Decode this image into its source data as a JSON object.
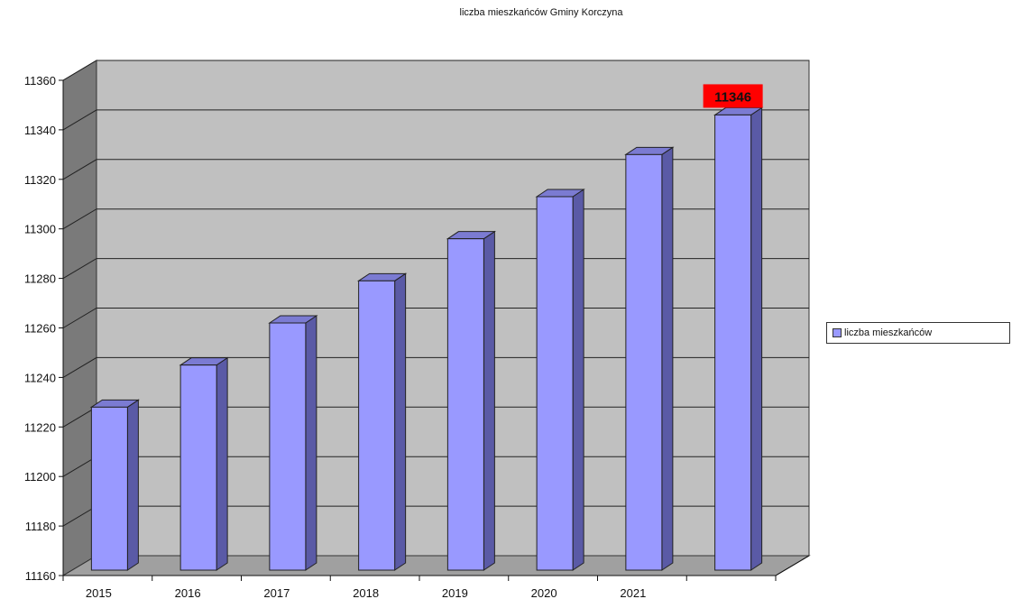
{
  "chart_data": {
    "type": "bar",
    "title": "liczba mieszkańców Gminy Korczyna",
    "categories": [
      "2015",
      "2016",
      "2017",
      "2018",
      "2019",
      "2020",
      "2021",
      ""
    ],
    "series": [
      {
        "name": "liczba mieszkańców",
        "values": [
          11228,
          11245,
          11262,
          11279,
          11296,
          11313,
          11330,
          11346
        ]
      }
    ],
    "data_labels": [
      {
        "text": "11346",
        "category_index": 7,
        "background": "#ff0000"
      }
    ],
    "y_ticks": [
      "11160",
      "11180",
      "11200",
      "11220",
      "11240",
      "11260",
      "11280",
      "11300",
      "11320",
      "11340",
      "11360"
    ],
    "ylim": [
      11160,
      11360
    ],
    "grid": true,
    "legend_position": "right",
    "style": "3d-column",
    "colors": {
      "bar_front": "#9999ff",
      "bar_side": "#5a5aa6",
      "bar_top": "#7b7bd2",
      "wall": "#c0c0c0",
      "floor": "#a0a0a0",
      "label_bg": "#ff0000"
    }
  }
}
